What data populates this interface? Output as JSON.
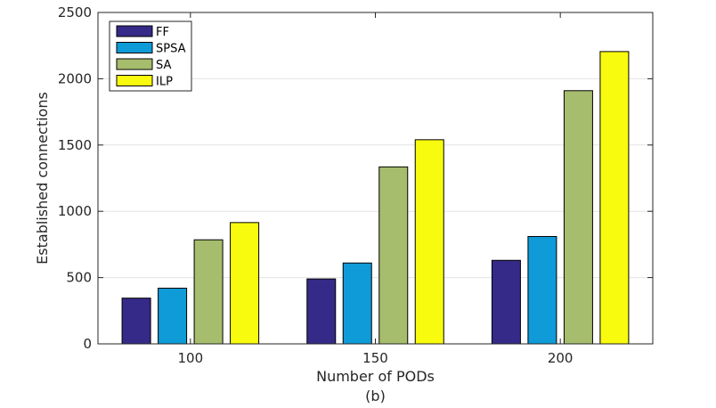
{
  "chart_data": {
    "type": "bar",
    "title": "",
    "caption": "(b)",
    "xlabel": "Number of PODs",
    "ylabel": "Established connections",
    "categories": [
      "100",
      "150",
      "200"
    ],
    "ylim": [
      0,
      2500
    ],
    "yticks": [
      0,
      500,
      1000,
      1500,
      2000,
      2500
    ],
    "grid": true,
    "legend_position": "top-left",
    "series": [
      {
        "name": "FF",
        "color": "#352a87",
        "values": [
          345,
          490,
          630
        ]
      },
      {
        "name": "SPSA",
        "color": "#0f9bd7",
        "values": [
          420,
          610,
          810
        ]
      },
      {
        "name": "SA",
        "color": "#a6bd6d",
        "values": [
          785,
          1335,
          1910
        ]
      },
      {
        "name": "ILP",
        "color": "#f9fb0e",
        "values": [
          915,
          1540,
          2205
        ]
      }
    ]
  }
}
